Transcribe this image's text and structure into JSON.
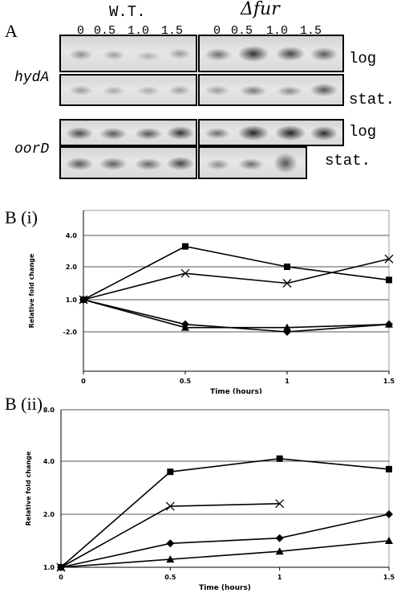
{
  "panel_a": {
    "letter": "A",
    "col_headers": [
      "W.T.",
      "Δfur"
    ],
    "time_labels": [
      "0",
      "0.5",
      "1.0",
      "1.5"
    ],
    "genes": [
      {
        "name": "hydA",
        "rows": [
          "log",
          "stat."
        ]
      },
      {
        "name": "oorD",
        "rows": [
          "log",
          "stat."
        ]
      }
    ]
  },
  "chart_data": [
    {
      "type": "line",
      "panel_label": "B (i)",
      "title": "",
      "xlabel": "Time (hours)",
      "ylabel": "Relative fold change",
      "x": [
        0,
        0.5,
        1,
        1.5
      ],
      "x_tick_labels": [
        "0",
        "0.5",
        "1",
        "1.5"
      ],
      "y_tick_labels": [
        "4.0",
        "2.0",
        "1.0",
        "-2.0"
      ],
      "y_tick_values": [
        4.0,
        2.0,
        1.0,
        -2.0
      ],
      "grid": true,
      "series": [
        {
          "marker": "square",
          "values": [
            1.0,
            3.3,
            2.0,
            1.6
          ]
        },
        {
          "marker": "x",
          "values": [
            1.0,
            1.8,
            1.5,
            2.5
          ]
        },
        {
          "marker": "diamond",
          "values": [
            1.0,
            -1.3,
            -2.0,
            -1.3
          ]
        },
        {
          "marker": "triangle",
          "values": [
            1.0,
            -1.6,
            -1.6,
            -1.3
          ]
        }
      ]
    },
    {
      "type": "line",
      "panel_label": "B (ii)",
      "title": "",
      "xlabel": "Time (hours)",
      "ylabel": "Relative fold change",
      "x": [
        0,
        0.5,
        1,
        1.5
      ],
      "x_tick_labels": [
        "0",
        "0.5",
        "1",
        "1.5"
      ],
      "y_tick_labels": [
        "8.0",
        "4.0",
        "2.0",
        "1.0"
      ],
      "y_tick_values": [
        8.0,
        4.0,
        2.0,
        1.0
      ],
      "grid": true,
      "series": [
        {
          "marker": "square",
          "values": [
            1.0,
            3.6,
            4.2,
            3.7
          ]
        },
        {
          "marker": "x",
          "values": [
            1.0,
            2.3,
            2.4,
            null
          ]
        },
        {
          "marker": "diamond",
          "values": [
            1.0,
            1.45,
            1.55,
            2.0
          ]
        },
        {
          "marker": "triangle",
          "values": [
            1.0,
            1.15,
            1.3,
            1.5
          ]
        }
      ]
    }
  ]
}
